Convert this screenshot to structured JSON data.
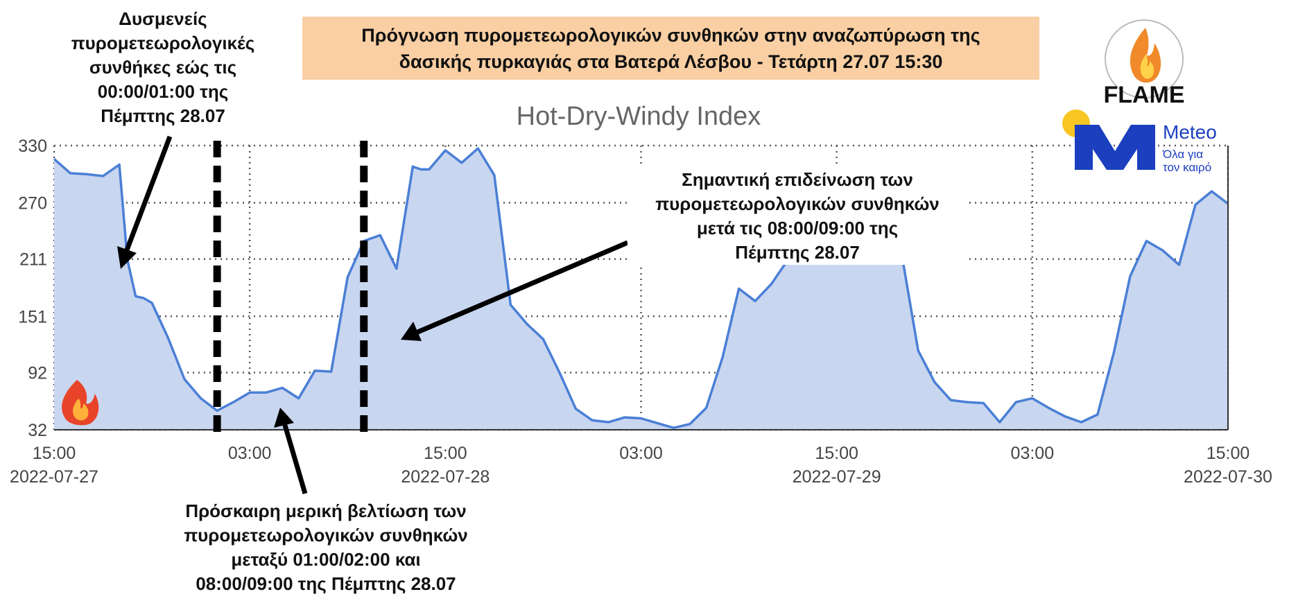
{
  "header": {
    "line1": "Πρόγνωση πυρομετεωρολογικών συνθηκών στην αναζωπύρωση της",
    "line2": "δασικής πυρκαγιάς στα Βατερά Λέσβου - Τετάρτη 27.07 15:30"
  },
  "annotations": {
    "left": [
      "Δυσμενείς",
      "πυρομετεωρολογικές",
      "συνθήκες εώς τις",
      "00:00/01:00 της",
      "Πέμπτης 28.07"
    ],
    "right": [
      "Σημαντική επιδείνωση των",
      "πυρομετεωρολογικών συνθηκών",
      "μετά τις 08:00/09:00 της",
      "Πέμπτης 28.07"
    ],
    "bottom": [
      "Πρόσκαιρη μερική βελτίωση των",
      "πυρομετεωρολογικών συνθηκών",
      "μεταξύ 01:00/02:00 και",
      "08:00/09:00 της Πέμπτης 28.07"
    ]
  },
  "logos": {
    "flame": "FLAME",
    "meteo": "Meteo",
    "meteo_sub1": "Όλα για",
    "meteo_sub2": "τον καιρό"
  },
  "colors": {
    "fill": "#c9d6f0",
    "line": "#4a7fd6",
    "title_box": "#f9cfa3"
  },
  "chart_data": {
    "type": "area",
    "title": "Hot-Dry-Windy Index",
    "xlabel": "",
    "ylabel": "",
    "yticks": [
      32,
      92,
      151,
      211,
      270,
      330
    ],
    "ylim": [
      32,
      330
    ],
    "xlim": [
      0,
      72
    ],
    "xticks": [
      {
        "x": 0,
        "line1": "15:00",
        "line2": "2022-07-27"
      },
      {
        "x": 12,
        "line1": "03:00",
        "line2": ""
      },
      {
        "x": 24,
        "line1": "15:00",
        "line2": "2022-07-28"
      },
      {
        "x": 36,
        "line1": "03:00",
        "line2": ""
      },
      {
        "x": 48,
        "line1": "15:00",
        "line2": "2022-07-29"
      },
      {
        "x": 60,
        "line1": "03:00",
        "line2": ""
      },
      {
        "x": 72,
        "line1": "15:00",
        "line2": "2022-07-30"
      }
    ],
    "grid": true,
    "x_hours": [
      0,
      1,
      2,
      3,
      4,
      4.5,
      5,
      5.5,
      6,
      7,
      8,
      9,
      10,
      11,
      12,
      13,
      14,
      15,
      16,
      17,
      18,
      19,
      20,
      21,
      22,
      22.5,
      23,
      24,
      25,
      26,
      27,
      28,
      29,
      30,
      31,
      32,
      33,
      34,
      35,
      36,
      37,
      38,
      39,
      40,
      41,
      42,
      43,
      44,
      45,
      46,
      47,
      48,
      49,
      50,
      51,
      52,
      53,
      54,
      55,
      56,
      57,
      58,
      59,
      60,
      61,
      62,
      63,
      64,
      65,
      66,
      67,
      68,
      69,
      70,
      71,
      72
    ],
    "values": [
      316,
      301,
      300,
      298,
      310,
      210,
      172,
      170,
      165,
      128,
      85,
      65,
      52,
      61,
      71,
      71,
      76,
      65,
      94,
      93,
      192,
      230,
      236,
      201,
      308,
      305,
      305,
      325,
      312,
      327,
      299,
      163,
      143,
      127,
      92,
      54,
      42,
      40,
      45,
      44,
      39,
      34,
      38,
      55,
      108,
      180,
      167,
      185,
      210,
      245,
      270,
      260,
      250,
      245,
      250,
      215,
      115,
      82,
      63,
      61,
      60,
      40,
      61,
      65,
      55,
      46,
      40,
      48,
      113,
      193,
      230,
      220,
      205,
      268,
      282,
      269
    ]
  },
  "markers": {
    "dashed_lines_at_hours": [
      10,
      19
    ]
  }
}
